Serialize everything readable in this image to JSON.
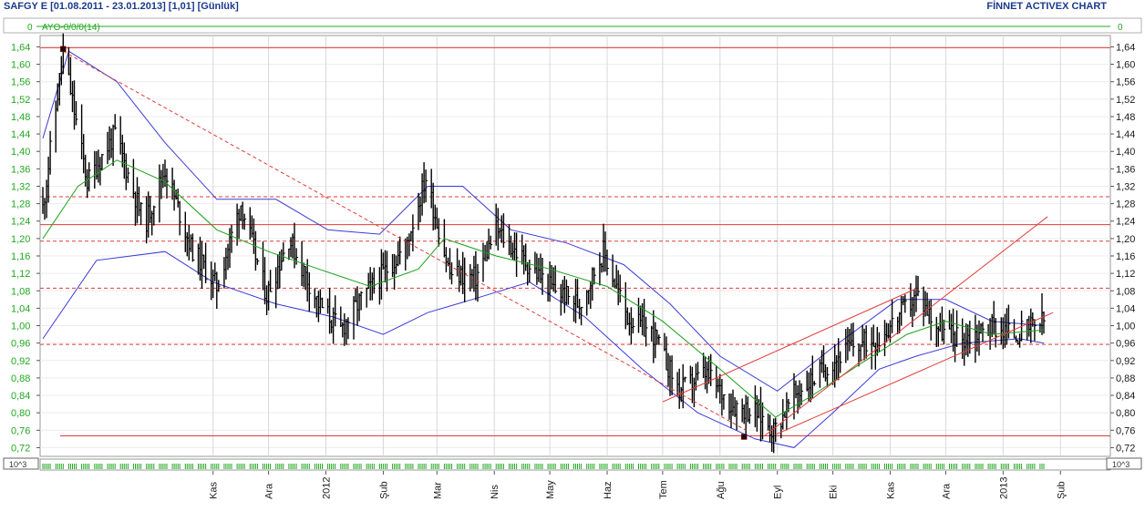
{
  "header": {
    "symbol_info": "SAFGY E  [01.08.2011 - 23.01.2013]  [1,01]  [Günlük]",
    "brand": "FİNNET ACTIVEX CHART",
    "indicator_zero_left": "0",
    "indicator_zero_right": "0",
    "indicator_caption": "AYO-0/0/0(14)",
    "volume_unit_left": "10^3",
    "volume_unit_right": "10^3"
  },
  "colors": {
    "axis_labels": "#22a822",
    "axis_labels_right": "#1a1a1a",
    "price_bars": "#000000",
    "moving_average": "#1aa01a",
    "bollinger_bands": "#3a3ad8",
    "trend_lines": "#e23a3a",
    "grid": "#d0d0d0",
    "volume_ticks": "#22a822"
  },
  "chart_data": {
    "type": "ohlc",
    "title": "SAFGY E",
    "ylim": [
      0.7,
      1.66
    ],
    "y_ticks": [
      "1,64",
      "1,60",
      "1,56",
      "1,52",
      "1,48",
      "1,44",
      "1,40",
      "1,36",
      "1,32",
      "1,28",
      "1,24",
      "1,20",
      "1,16",
      "1,12",
      "1,08",
      "1,04",
      "1,00",
      "0,96",
      "0,92",
      "0,88",
      "0,84",
      "0,80",
      "0,76",
      "0,72"
    ],
    "x_ticks": [
      "Kas",
      "Ara",
      "2012",
      "Şub",
      "Mar",
      "Nis",
      "May",
      "Haz",
      "Tem",
      "Ağu",
      "Eyl",
      "Eki",
      "Kas",
      "Ara",
      "2013",
      "Şub"
    ],
    "date_range": [
      "2011-08-01",
      "2013-01-23"
    ],
    "close_path": [
      {
        "date": "2011-08-01",
        "close": 1.27
      },
      {
        "date": "2011-08-12",
        "close": 1.63
      },
      {
        "date": "2011-08-25",
        "close": 1.33
      },
      {
        "date": "2011-09-09",
        "close": 1.44
      },
      {
        "date": "2011-09-25",
        "close": 1.23
      },
      {
        "date": "2011-10-06",
        "close": 1.36
      },
      {
        "date": "2011-10-20",
        "close": 1.18
      },
      {
        "date": "2011-11-03",
        "close": 1.09
      },
      {
        "date": "2011-11-16",
        "close": 1.28
      },
      {
        "date": "2011-11-30",
        "close": 1.07
      },
      {
        "date": "2011-12-12",
        "close": 1.2
      },
      {
        "date": "2011-12-28",
        "close": 1.05
      },
      {
        "date": "2012-01-09",
        "close": 0.99
      },
      {
        "date": "2012-01-20",
        "close": 1.06
      },
      {
        "date": "2012-02-01",
        "close": 1.12
      },
      {
        "date": "2012-02-13",
        "close": 1.18
      },
      {
        "date": "2012-02-24",
        "close": 1.34
      },
      {
        "date": "2012-03-08",
        "close": 1.12
      },
      {
        "date": "2012-03-22",
        "close": 1.11
      },
      {
        "date": "2012-04-02",
        "close": 1.22
      },
      {
        "date": "2012-04-17",
        "close": 1.15
      },
      {
        "date": "2012-05-01",
        "close": 1.09
      },
      {
        "date": "2012-05-17",
        "close": 1.05
      },
      {
        "date": "2012-05-30",
        "close": 1.17
      },
      {
        "date": "2012-06-12",
        "close": 1.02
      },
      {
        "date": "2012-06-26",
        "close": 0.98
      },
      {
        "date": "2012-07-10",
        "close": 0.85
      },
      {
        "date": "2012-07-24",
        "close": 0.89
      },
      {
        "date": "2012-08-07",
        "close": 0.82
      },
      {
        "date": "2012-08-21",
        "close": 0.8
      },
      {
        "date": "2012-08-30",
        "close": 0.76
      },
      {
        "date": "2012-09-10",
        "close": 0.84
      },
      {
        "date": "2012-09-26",
        "close": 0.9
      },
      {
        "date": "2012-10-10",
        "close": 0.95
      },
      {
        "date": "2012-10-26",
        "close": 0.97
      },
      {
        "date": "2012-11-07",
        "close": 1.03
      },
      {
        "date": "2012-11-16",
        "close": 1.07
      },
      {
        "date": "2012-11-28",
        "close": 0.99
      },
      {
        "date": "2012-12-11",
        "close": 0.97
      },
      {
        "date": "2012-12-26",
        "close": 1.0
      },
      {
        "date": "2013-01-08",
        "close": 0.98
      },
      {
        "date": "2013-01-23",
        "close": 1.01
      }
    ],
    "series": [
      {
        "name": "moving_average",
        "values": [
          {
            "date": "2011-08-01",
            "v": 1.2
          },
          {
            "date": "2011-08-20",
            "v": 1.32
          },
          {
            "date": "2011-09-10",
            "v": 1.38
          },
          {
            "date": "2011-10-06",
            "v": 1.33
          },
          {
            "date": "2011-11-03",
            "v": 1.22
          },
          {
            "date": "2011-12-01",
            "v": 1.17
          },
          {
            "date": "2011-12-28",
            "v": 1.13
          },
          {
            "date": "2012-01-25",
            "v": 1.09
          },
          {
            "date": "2012-02-20",
            "v": 1.13
          },
          {
            "date": "2012-03-05",
            "v": 1.2
          },
          {
            "date": "2012-04-02",
            "v": 1.16
          },
          {
            "date": "2012-05-01",
            "v": 1.13
          },
          {
            "date": "2012-06-01",
            "v": 1.09
          },
          {
            "date": "2012-07-01",
            "v": 1.01
          },
          {
            "date": "2012-08-01",
            "v": 0.9
          },
          {
            "date": "2012-08-31",
            "v": 0.79
          },
          {
            "date": "2012-09-20",
            "v": 0.84
          },
          {
            "date": "2012-10-15",
            "v": 0.91
          },
          {
            "date": "2012-11-10",
            "v": 0.98
          },
          {
            "date": "2012-12-01",
            "v": 1.01
          },
          {
            "date": "2012-12-26",
            "v": 0.98
          },
          {
            "date": "2013-01-23",
            "v": 0.99
          }
        ]
      },
      {
        "name": "upper_band",
        "values": [
          {
            "date": "2011-08-01",
            "v": 1.43
          },
          {
            "date": "2011-08-15",
            "v": 1.63
          },
          {
            "date": "2011-09-10",
            "v": 1.56
          },
          {
            "date": "2011-10-06",
            "v": 1.42
          },
          {
            "date": "2011-11-03",
            "v": 1.29
          },
          {
            "date": "2011-12-05",
            "v": 1.29
          },
          {
            "date": "2012-01-02",
            "v": 1.22
          },
          {
            "date": "2012-01-30",
            "v": 1.21
          },
          {
            "date": "2012-02-25",
            "v": 1.32
          },
          {
            "date": "2012-03-15",
            "v": 1.32
          },
          {
            "date": "2012-04-10",
            "v": 1.22
          },
          {
            "date": "2012-05-10",
            "v": 1.19
          },
          {
            "date": "2012-06-10",
            "v": 1.14
          },
          {
            "date": "2012-07-05",
            "v": 1.05
          },
          {
            "date": "2012-08-01",
            "v": 0.93
          },
          {
            "date": "2012-09-01",
            "v": 0.85
          },
          {
            "date": "2012-10-01",
            "v": 0.95
          },
          {
            "date": "2012-11-05",
            "v": 1.06
          },
          {
            "date": "2012-12-01",
            "v": 1.06
          },
          {
            "date": "2012-12-26",
            "v": 1.01
          },
          {
            "date": "2013-01-23",
            "v": 1.0
          }
        ]
      },
      {
        "name": "lower_band",
        "values": [
          {
            "date": "2011-08-01",
            "v": 0.97
          },
          {
            "date": "2011-08-30",
            "v": 1.15
          },
          {
            "date": "2011-10-06",
            "v": 1.17
          },
          {
            "date": "2011-11-01",
            "v": 1.1
          },
          {
            "date": "2011-12-05",
            "v": 1.05
          },
          {
            "date": "2012-01-05",
            "v": 1.02
          },
          {
            "date": "2012-02-01",
            "v": 0.98
          },
          {
            "date": "2012-02-25",
            "v": 1.03
          },
          {
            "date": "2012-03-20",
            "v": 1.06
          },
          {
            "date": "2012-04-20",
            "v": 1.1
          },
          {
            "date": "2012-05-20",
            "v": 1.02
          },
          {
            "date": "2012-06-20",
            "v": 0.9
          },
          {
            "date": "2012-07-20",
            "v": 0.8
          },
          {
            "date": "2012-08-20",
            "v": 0.74
          },
          {
            "date": "2012-09-10",
            "v": 0.72
          },
          {
            "date": "2012-10-01",
            "v": 0.8
          },
          {
            "date": "2012-10-26",
            "v": 0.9
          },
          {
            "date": "2012-11-15",
            "v": 0.93
          },
          {
            "date": "2012-12-10",
            "v": 0.96
          },
          {
            "date": "2013-01-10",
            "v": 0.97
          },
          {
            "date": "2013-01-23",
            "v": 0.96
          }
        ]
      }
    ],
    "horizontal_lines": [
      {
        "v": 1.638,
        "style": "solid"
      },
      {
        "v": 1.296,
        "style": "dashed"
      },
      {
        "v": 1.232,
        "style": "solid"
      },
      {
        "v": 1.194,
        "style": "dashed"
      },
      {
        "v": 1.086,
        "style": "dashed"
      },
      {
        "v": 0.957,
        "style": "dashed"
      },
      {
        "v": 0.747,
        "style": "solid"
      }
    ],
    "trend_lines": [
      {
        "from": {
          "date": "2011-08-12",
          "v": 1.63
        },
        "to": {
          "date": "2012-08-15",
          "v": 0.76
        },
        "style": "dashed"
      },
      {
        "from": {
          "date": "2012-07-01",
          "v": 0.825
        },
        "to": {
          "date": "2012-11-15",
          "v": 1.085
        },
        "style": "solid"
      },
      {
        "from": {
          "date": "2012-08-25",
          "v": 0.747
        },
        "to": {
          "date": "2013-01-25",
          "v": 1.25
        },
        "style": "solid"
      },
      {
        "from": {
          "date": "2012-08-31",
          "v": 0.75
        },
        "to": {
          "date": "2013-01-28",
          "v": 1.03
        },
        "style": "solid"
      }
    ],
    "markers": [
      {
        "date": "2011-08-12",
        "v": 1.635
      },
      {
        "date": "2012-08-14",
        "v": 0.745
      }
    ],
    "grid": true
  }
}
